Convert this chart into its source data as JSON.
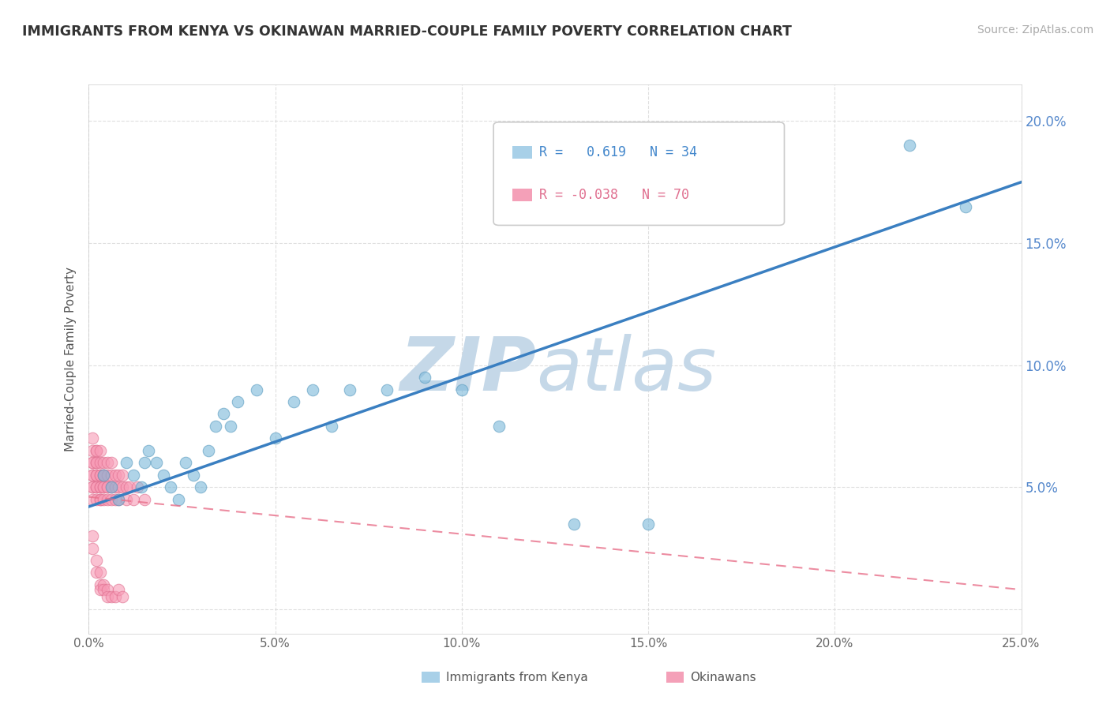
{
  "title": "IMMIGRANTS FROM KENYA VS OKINAWAN MARRIED-COUPLE FAMILY POVERTY CORRELATION CHART",
  "source": "Source: ZipAtlas.com",
  "ylabel": "Married-Couple Family Poverty",
  "xlim": [
    0.0,
    0.25
  ],
  "ylim": [
    -0.01,
    0.215
  ],
  "xtick_labels": [
    "0.0%",
    "5.0%",
    "10.0%",
    "15.0%",
    "20.0%",
    "25.0%"
  ],
  "xtick_vals": [
    0.0,
    0.05,
    0.1,
    0.15,
    0.2,
    0.25
  ],
  "ytick_vals": [
    0.0,
    0.05,
    0.1,
    0.15,
    0.2
  ],
  "ytick_labels_right": [
    "",
    "5.0%",
    "10.0%",
    "15.0%",
    "20.0%"
  ],
  "kenya_color": "#7ab8d9",
  "kenya_edge": "#5a9cc0",
  "okinawa_color": "#f79ab5",
  "okinawa_edge": "#e07090",
  "kenya_line_color": "#3a7fc1",
  "okinawa_line_color": "#e8708a",
  "kenya_line": {
    "x0": 0.0,
    "y0": 0.042,
    "x1": 0.25,
    "y1": 0.175
  },
  "okinawa_line": {
    "x0": 0.0,
    "y0": 0.046,
    "x1": 0.25,
    "y1": 0.008
  },
  "kenya_scatter": {
    "x": [
      0.004,
      0.006,
      0.008,
      0.01,
      0.012,
      0.014,
      0.015,
      0.016,
      0.018,
      0.02,
      0.022,
      0.024,
      0.026,
      0.028,
      0.03,
      0.032,
      0.034,
      0.036,
      0.038,
      0.04,
      0.045,
      0.05,
      0.055,
      0.06,
      0.065,
      0.07,
      0.08,
      0.09,
      0.1,
      0.11,
      0.13,
      0.15,
      0.22,
      0.235
    ],
    "y": [
      0.055,
      0.05,
      0.045,
      0.06,
      0.055,
      0.05,
      0.06,
      0.065,
      0.06,
      0.055,
      0.05,
      0.045,
      0.06,
      0.055,
      0.05,
      0.065,
      0.075,
      0.08,
      0.075,
      0.085,
      0.09,
      0.07,
      0.085,
      0.09,
      0.075,
      0.09,
      0.09,
      0.095,
      0.09,
      0.075,
      0.035,
      0.035,
      0.19,
      0.165
    ]
  },
  "okinawa_scatter": {
    "x": [
      0.001,
      0.001,
      0.001,
      0.001,
      0.001,
      0.001,
      0.001,
      0.001,
      0.001,
      0.002,
      0.002,
      0.002,
      0.002,
      0.002,
      0.002,
      0.002,
      0.002,
      0.002,
      0.003,
      0.003,
      0.003,
      0.003,
      0.003,
      0.003,
      0.003,
      0.003,
      0.004,
      0.004,
      0.004,
      0.004,
      0.004,
      0.004,
      0.005,
      0.005,
      0.005,
      0.005,
      0.005,
      0.006,
      0.006,
      0.006,
      0.006,
      0.007,
      0.007,
      0.007,
      0.008,
      0.008,
      0.008,
      0.009,
      0.009,
      0.01,
      0.01,
      0.011,
      0.012,
      0.013,
      0.015,
      0.001,
      0.001,
      0.002,
      0.002,
      0.003,
      0.003,
      0.003,
      0.004,
      0.004,
      0.005,
      0.005,
      0.006,
      0.007,
      0.008,
      0.009
    ],
    "y": [
      0.065,
      0.055,
      0.05,
      0.06,
      0.045,
      0.055,
      0.05,
      0.06,
      0.07,
      0.055,
      0.05,
      0.06,
      0.065,
      0.045,
      0.055,
      0.05,
      0.06,
      0.065,
      0.055,
      0.05,
      0.045,
      0.06,
      0.055,
      0.065,
      0.05,
      0.045,
      0.05,
      0.055,
      0.045,
      0.06,
      0.05,
      0.055,
      0.05,
      0.055,
      0.045,
      0.06,
      0.05,
      0.05,
      0.055,
      0.045,
      0.06,
      0.05,
      0.055,
      0.045,
      0.05,
      0.055,
      0.045,
      0.05,
      0.055,
      0.045,
      0.05,
      0.05,
      0.045,
      0.05,
      0.045,
      0.03,
      0.025,
      0.02,
      0.015,
      0.01,
      0.015,
      0.008,
      0.01,
      0.008,
      0.008,
      0.005,
      0.005,
      0.005,
      0.008,
      0.005
    ]
  },
  "watermark_zip_color": "#c5d8e8",
  "watermark_atlas_color": "#c5d8e8",
  "background_color": "#ffffff",
  "grid_color": "#d8d8d8"
}
